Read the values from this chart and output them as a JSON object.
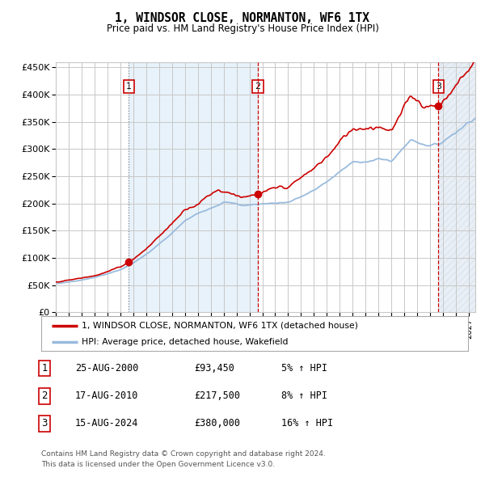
{
  "title": "1, WINDSOR CLOSE, NORMANTON, WF6 1TX",
  "subtitle": "Price paid vs. HM Land Registry's House Price Index (HPI)",
  "xlim_start": 1995.0,
  "xlim_end": 2027.5,
  "ylim": [
    0,
    460000
  ],
  "yticks": [
    0,
    50000,
    100000,
    150000,
    200000,
    250000,
    300000,
    350000,
    400000,
    450000
  ],
  "ytick_labels": [
    "£0",
    "£50K",
    "£100K",
    "£150K",
    "£200K",
    "£250K",
    "£300K",
    "£350K",
    "£400K",
    "£450K"
  ],
  "xticks": [
    1995,
    1996,
    1997,
    1998,
    1999,
    2000,
    2001,
    2002,
    2003,
    2004,
    2005,
    2006,
    2007,
    2008,
    2009,
    2010,
    2011,
    2012,
    2013,
    2014,
    2015,
    2016,
    2017,
    2018,
    2019,
    2020,
    2021,
    2022,
    2023,
    2024,
    2025,
    2026,
    2027
  ],
  "background_color": "#ffffff",
  "plot_bg_color": "#ffffff",
  "grid_color": "#c8c8c8",
  "red_line_color": "#cc0000",
  "blue_line_color": "#99bbdd",
  "shade_color": "#d6e8f7",
  "hatch_color": "#c8d8e8",
  "sale1_x": 2000.646,
  "sale1_y": 93450,
  "sale1_label": "1",
  "sale1_date": "25-AUG-2000",
  "sale1_price": "£93,450",
  "sale1_hpi": "5% ↑ HPI",
  "sale2_x": 2010.646,
  "sale2_y": 217500,
  "sale2_label": "2",
  "sale2_date": "17-AUG-2010",
  "sale2_price": "£217,500",
  "sale2_hpi": "8% ↑ HPI",
  "sale3_x": 2024.646,
  "sale3_y": 380000,
  "sale3_label": "3",
  "sale3_date": "15-AUG-2024",
  "sale3_price": "£380,000",
  "sale3_hpi": "16% ↑ HPI",
  "legend_line1": "1, WINDSOR CLOSE, NORMANTON, WF6 1TX (detached house)",
  "legend_line2": "HPI: Average price, detached house, Wakefield",
  "footer1": "Contains HM Land Registry data © Crown copyright and database right 2024.",
  "footer2": "This data is licensed under the Open Government Licence v3.0."
}
